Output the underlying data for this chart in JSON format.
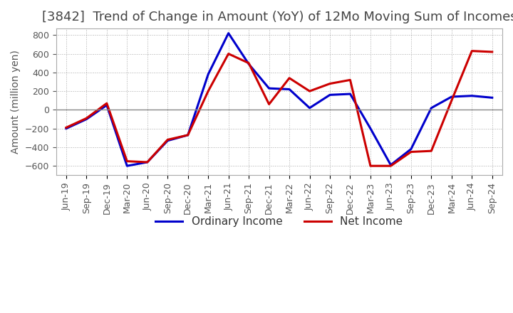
{
  "title": "[3842]  Trend of Change in Amount (YoY) of 12Mo Moving Sum of Incomes",
  "ylabel": "Amount (million yen)",
  "x_labels": [
    "Jun-19",
    "Sep-19",
    "Dec-19",
    "Mar-20",
    "Jun-20",
    "Sep-20",
    "Dec-20",
    "Mar-21",
    "Jun-21",
    "Sep-21",
    "Dec-21",
    "Mar-22",
    "Jun-22",
    "Sep-22",
    "Dec-22",
    "Mar-23",
    "Jun-23",
    "Sep-23",
    "Dec-23",
    "Mar-24",
    "Jun-24",
    "Sep-24"
  ],
  "ordinary_income": [
    -200,
    -100,
    50,
    -600,
    -560,
    -330,
    -270,
    380,
    820,
    490,
    230,
    220,
    20,
    160,
    170,
    -200,
    -590,
    -420,
    20,
    140,
    150,
    130
  ],
  "net_income": [
    -190,
    -90,
    70,
    -550,
    -560,
    -320,
    -270,
    200,
    600,
    500,
    60,
    340,
    200,
    280,
    320,
    -600,
    -600,
    -450,
    -440,
    100,
    630,
    620
  ],
  "ordinary_color": "#0000cc",
  "net_color": "#cc0000",
  "ylim": [
    -700,
    870
  ],
  "yticks": [
    -600,
    -400,
    -200,
    0,
    200,
    400,
    600,
    800
  ],
  "grid_color": "#aaaaaa",
  "background_color": "#ffffff",
  "title_fontsize": 13,
  "axis_fontsize": 10,
  "tick_fontsize": 9,
  "legend_fontsize": 11,
  "line_width": 2.2
}
